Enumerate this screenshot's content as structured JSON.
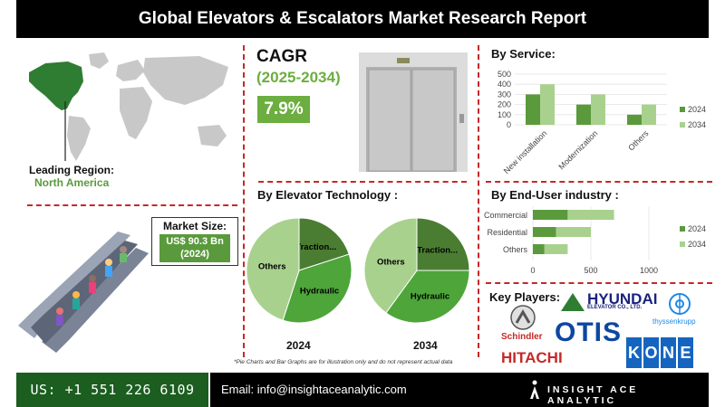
{
  "header": {
    "title": "Global Elevators & Escalators Market Research Report"
  },
  "region": {
    "label": "Leading Region:",
    "value": "North America"
  },
  "market_size": {
    "label": "Market Size:",
    "value_line1": "US$ 90.3 Bn",
    "value_line2": "(2024)"
  },
  "cagr": {
    "title": "CAGR",
    "period": "(2025-2034)",
    "value": "7.9%"
  },
  "technology": {
    "title": "By Elevator Technology :",
    "year1": "2024",
    "year2": "2034"
  },
  "service": {
    "title": "By Service:"
  },
  "enduser": {
    "title": "By End-User industry :"
  },
  "players": {
    "title": "Key Players:",
    "hyundai": "HYUNDAI",
    "hyundai_sub": "ELEVATOR CO., LTD.",
    "thyssen": "thyssenkrupp",
    "schindler": "Schindler",
    "otis": "OTIS",
    "hitachi": "HITACHI",
    "kone": [
      "K",
      "O",
      "N",
      "E"
    ]
  },
  "disclaimer": "*Pie Charts and Bar Graphs are for illustration only and do not represent actual data",
  "footer": {
    "phone": "US: +1 551 226 6109",
    "email": "Email: info@insightaceanalytic.com",
    "brand": "INSIGHT ACE ANALYTIC"
  },
  "colors": {
    "dark_green": "#5a9a3c",
    "light_green": "#a9d18e",
    "accent_red": "#c62828",
    "cagr_green": "#6cae3f"
  },
  "chart_data": [
    {
      "type": "bar",
      "title": "By Service:",
      "categories": [
        "New installation",
        "Modernization",
        "Others"
      ],
      "series": [
        {
          "name": "2024",
          "values": [
            300,
            200,
            100
          ]
        },
        {
          "name": "2034",
          "values": [
            400,
            300,
            200
          ]
        }
      ],
      "ylim": [
        0,
        500
      ],
      "yticks": [
        0,
        100,
        200,
        300,
        400,
        500
      ],
      "legend": "right"
    },
    {
      "type": "bar",
      "orientation": "horizontal",
      "title": "By End-User industry :",
      "categories": [
        "Commercial",
        "Residential",
        "Others"
      ],
      "series": [
        {
          "name": "2024",
          "values": [
            300,
            200,
            100
          ]
        },
        {
          "name": "2034",
          "values": [
            400,
            300,
            200
          ]
        }
      ],
      "xlim": [
        0,
        1000
      ],
      "xticks": [
        0,
        500,
        1000
      ],
      "stacked": true,
      "legend": "right"
    },
    {
      "type": "pie",
      "title": "2024",
      "labels": [
        "Traction...",
        "Hydraulic",
        "Others"
      ],
      "values": [
        20,
        35,
        45
      ]
    },
    {
      "type": "pie",
      "title": "2034",
      "labels": [
        "Traction...",
        "Hydraulic",
        "Others"
      ],
      "values": [
        25,
        35,
        40
      ]
    }
  ]
}
